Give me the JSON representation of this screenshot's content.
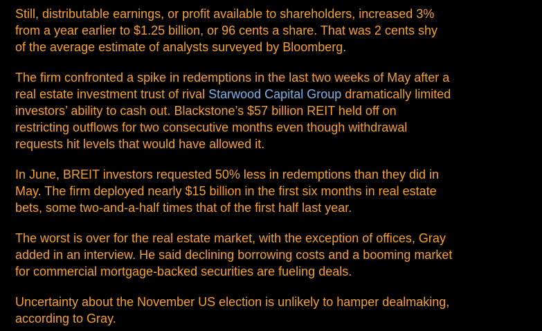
{
  "paragraphs": [
    {
      "lines": [
        "Still, distributable earnings, or profit available to shareholders, increased 3%",
        "from a year earlier to $1.25 billion, or 96 cents a share. That was 2 cents shy",
        "of the average estimate of analysts surveyed by Bloomberg."
      ]
    },
    {
      "lines": [
        "The firm confronted a spike in redemptions in the last two weeks of May after a",
        [
          "real estate investment trust of rival ",
          "Starwood Capital Group",
          " dramatically limited"
        ],
        "investors’ ability to cash out. Blackstone’s $57 billion REIT held off on",
        "restricting outflows for two consecutive months even though withdrawal",
        "requests hit levels that would have allowed it."
      ]
    },
    {
      "lines": [
        "In June, BREIT investors requested 50% less in redemptions than they did in",
        "May. The firm deployed nearly $15 billion in the first six months in real estate",
        "bets, some two-and-a-half times that of the first half last year."
      ]
    },
    {
      "lines": [
        "The worst is over for the real estate market, with the exception of offices, Gray",
        "added in an interview. He said declining borrowing costs and a booming market",
        "for commercial mortgage-backed securities are fueling deals."
      ]
    },
    {
      "lines": [
        "Uncertainty about the November US election is unlikely to hamper dealmaking,",
        "according to Gray."
      ]
    }
  ]
}
